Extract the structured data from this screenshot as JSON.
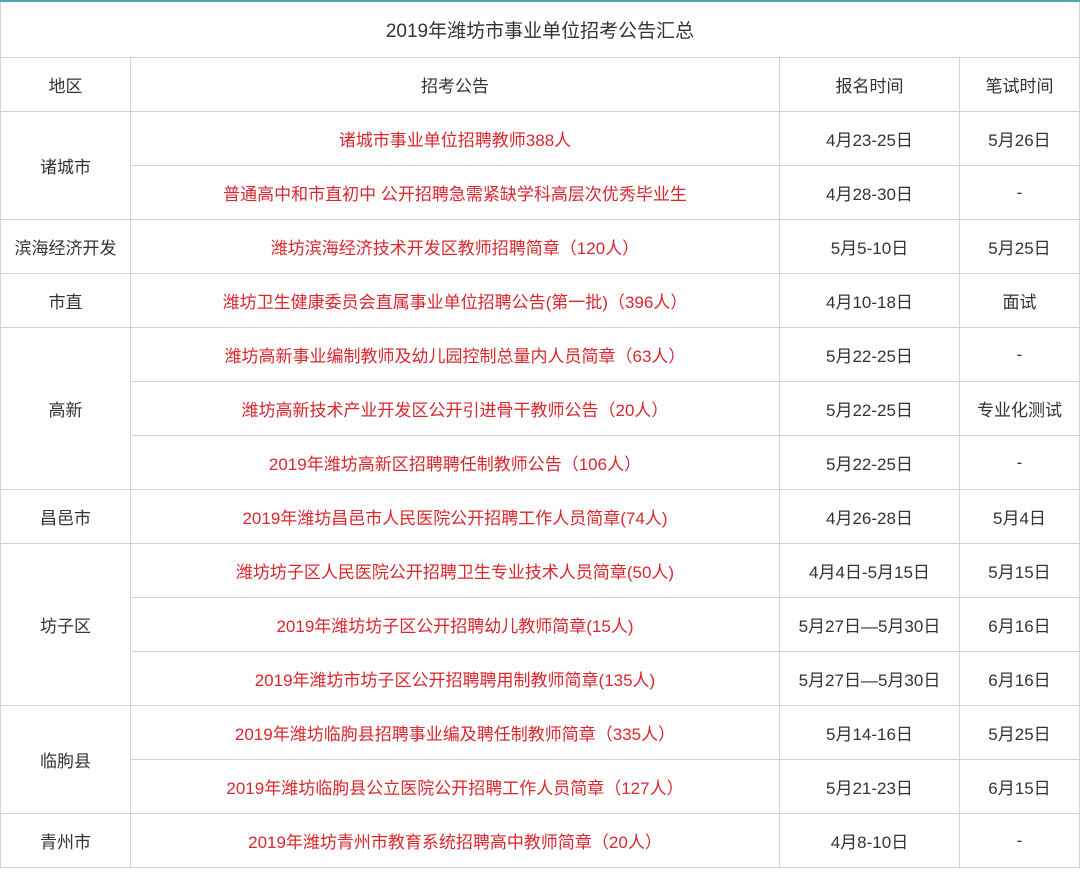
{
  "colors": {
    "topBorder": "#4aa8b8",
    "cellBorder": "#cfd4d8",
    "linkRed": "#d9272d",
    "text": "#333333",
    "background": "#ffffff"
  },
  "title": "2019年潍坊市事业单位招考公告汇总",
  "headers": {
    "region": "地区",
    "notice": "招考公告",
    "regTime": "报名时间",
    "examTime": "笔试时间"
  },
  "rows": {
    "r0": {
      "region": "诸城市",
      "notice": "诸城市事业单位招聘教师388人",
      "reg": "4月23-25日",
      "exam": "5月26日"
    },
    "r1": {
      "notice": "普通高中和市直初中 公开招聘急需紧缺学科高层次优秀毕业生",
      "reg": "4月28-30日",
      "exam": "-"
    },
    "r2": {
      "region": "滨海经济开发",
      "notice": "潍坊滨海经济技术开发区教师招聘简章（120人）",
      "reg": "5月5-10日",
      "exam": "5月25日"
    },
    "r3": {
      "region": "市直",
      "notice": "潍坊卫生健康委员会直属事业单位招聘公告(第一批)（396人）",
      "reg": "4月10-18日",
      "exam": "面试"
    },
    "r4": {
      "region": "高新",
      "notice": "潍坊高新事业编制教师及幼儿园控制总量内人员简章（63人）",
      "reg": "5月22-25日",
      "exam": "-"
    },
    "r5": {
      "notice": "潍坊高新技术产业开发区公开引进骨干教师公告（20人）",
      "reg": "5月22-25日",
      "exam": "专业化测试"
    },
    "r6": {
      "notice": "2019年潍坊高新区招聘聘任制教师公告（106人）",
      "reg": "5月22-25日",
      "exam": "-"
    },
    "r7": {
      "region": "昌邑市",
      "notice": "2019年潍坊昌邑市人民医院公开招聘工作人员简章(74人)",
      "reg": "4月26-28日",
      "exam": "5月4日"
    },
    "r8": {
      "region": "坊子区",
      "notice": "潍坊坊子区人民医院公开招聘卫生专业技术人员简章(50人)",
      "reg": "4月4日-5月15日",
      "exam": "5月15日"
    },
    "r9": {
      "notice": "2019年潍坊坊子区公开招聘幼儿教师简章(15人)",
      "reg": "5月27日—5月30日",
      "exam": "6月16日"
    },
    "r10": {
      "notice": "2019年潍坊市坊子区公开招聘聘用制教师简章(135人)",
      "reg": "5月27日—5月30日",
      "exam": "6月16日"
    },
    "r11": {
      "region": "临朐县",
      "notice": "2019年潍坊临朐县招聘事业编及聘任制教师简章（335人）",
      "reg": "5月14-16日",
      "exam": "5月25日"
    },
    "r12": {
      "notice": "2019年潍坊临朐县公立医院公开招聘工作人员简章（127人）",
      "reg": "5月21-23日",
      "exam": "6月15日"
    },
    "r13": {
      "region": "青州市",
      "notice": "2019年潍坊青州市教育系统招聘高中教师简章（20人）",
      "reg": "4月8-10日",
      "exam": "-"
    }
  }
}
